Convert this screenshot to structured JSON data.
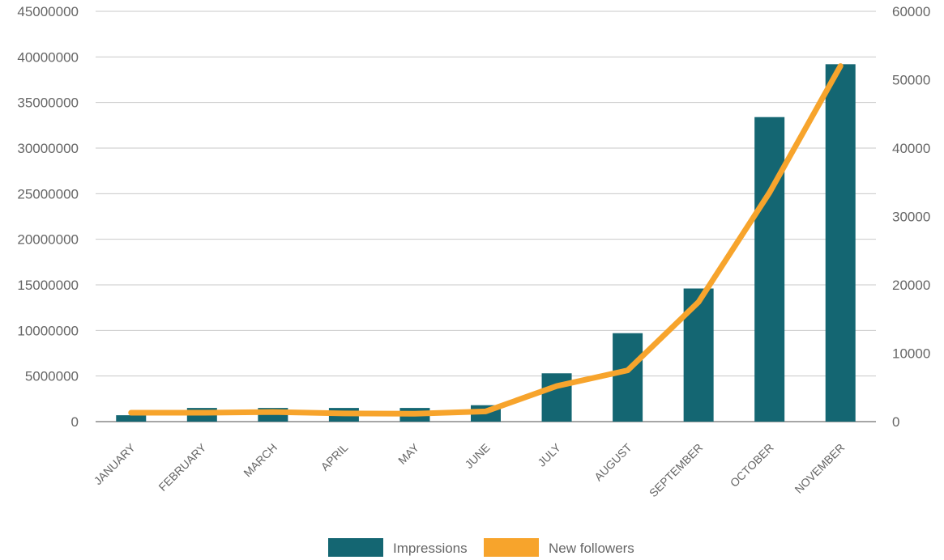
{
  "chart_data": {
    "type": "bar",
    "categories": [
      "JANUARY",
      "FEBRUARY",
      "MARCH",
      "APRIL",
      "MAY",
      "JUNE",
      "JULY",
      "AUGUST",
      "SEPTEMBER",
      "OCTOBER",
      "NOVEMBER"
    ],
    "series": [
      {
        "name": "Impressions",
        "type": "bar",
        "axis": "left",
        "color": "#146672",
        "values": [
          700000,
          1500000,
          1500000,
          1500000,
          1500000,
          1800000,
          5300000,
          9700000,
          14600000,
          33400000,
          39200000
        ]
      },
      {
        "name": "New followers",
        "type": "line",
        "axis": "right",
        "color": "#F7A42C",
        "values": [
          1300,
          1300,
          1400,
          1200,
          1150,
          1500,
          5200,
          7500,
          17500,
          33500,
          52000
        ]
      }
    ],
    "y_left": {
      "lim": [
        0,
        45000000
      ],
      "ticks": [
        "0",
        "5000000",
        "10000000",
        "15000000",
        "20000000",
        "25000000",
        "30000000",
        "35000000",
        "40000000",
        "45000000"
      ]
    },
    "y_right": {
      "lim": [
        0,
        60000
      ],
      "ticks": [
        "0",
        "10000",
        "20000",
        "30000",
        "40000",
        "50000",
        "60000"
      ]
    },
    "grid": true,
    "legend": "bottom-center"
  }
}
